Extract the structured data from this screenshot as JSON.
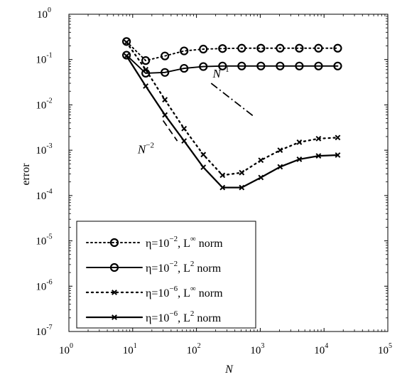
{
  "chart_data": {
    "type": "line",
    "xlabel": "N",
    "ylabel": "error",
    "xscale": "log",
    "yscale": "log",
    "xlim": [
      1,
      100000
    ],
    "ylim": [
      1e-07,
      1
    ],
    "grid": false,
    "legend_position": "bottom-left",
    "x_ticks": [
      {
        "base": "10",
        "exp": "0"
      },
      {
        "base": "10",
        "exp": "1"
      },
      {
        "base": "10",
        "exp": "2"
      },
      {
        "base": "10",
        "exp": "3"
      },
      {
        "base": "10",
        "exp": "4"
      },
      {
        "base": "10",
        "exp": "5"
      }
    ],
    "y_ticks": [
      {
        "base": "10",
        "exp": "-7"
      },
      {
        "base": "10",
        "exp": "-6"
      },
      {
        "base": "10",
        "exp": "-5"
      },
      {
        "base": "10",
        "exp": "-4"
      },
      {
        "base": "10",
        "exp": "-3"
      },
      {
        "base": "10",
        "exp": "-2"
      },
      {
        "base": "10",
        "exp": "-1"
      },
      {
        "base": "10",
        "exp": "0"
      }
    ],
    "x": [
      8,
      16,
      32,
      64,
      128,
      256,
      512,
      1024,
      2048,
      4096,
      8192,
      16384
    ],
    "series": [
      {
        "legend_pre": "η=10",
        "legend_exp": "−2",
        "legend_mid": ", L",
        "legend_norm_exp": "∞",
        "legend_post": " norm",
        "line": "dotted",
        "marker": "circle",
        "weight": "normal",
        "values": [
          0.25,
          0.095,
          0.12,
          0.155,
          0.17,
          0.175,
          0.178,
          0.178,
          0.178,
          0.178,
          0.178,
          0.178
        ]
      },
      {
        "legend_pre": "η=10",
        "legend_exp": "−2",
        "legend_mid": ", L",
        "legend_norm_exp": "2",
        "legend_post": " norm",
        "line": "solid",
        "marker": "circle",
        "weight": "normal",
        "values": [
          0.125,
          0.05,
          0.052,
          0.064,
          0.07,
          0.072,
          0.072,
          0.072,
          0.072,
          0.072,
          0.072,
          0.072
        ]
      },
      {
        "legend_pre": "η=10",
        "legend_exp": "−6",
        "legend_mid": ", L",
        "legend_norm_exp": "∞",
        "legend_post": " norm",
        "line": "dotted",
        "marker": "x",
        "weight": "bold",
        "values": [
          0.24,
          0.06,
          0.013,
          0.003,
          0.0008,
          0.00028,
          0.00032,
          0.0006,
          0.001,
          0.0015,
          0.0018,
          0.0019
        ]
      },
      {
        "legend_pre": "η=10",
        "legend_exp": "−6",
        "legend_mid": ", L",
        "legend_norm_exp": "2",
        "legend_post": " norm",
        "line": "solid",
        "marker": "x",
        "weight": "bold",
        "values": [
          0.12,
          0.026,
          0.006,
          0.0016,
          0.00042,
          0.00015,
          0.00015,
          0.00025,
          0.00043,
          0.00063,
          0.00075,
          0.00078
        ]
      }
    ],
    "reference_lines": [
      {
        "label_base": "N",
        "label_exp": "−1",
        "line": "dashdot",
        "x": [
          170,
          800
        ],
        "y": [
          0.03,
          0.0055
        ],
        "label_x": 180,
        "label_y": 0.04
      },
      {
        "label_base": "N",
        "label_exp": "−2",
        "line": "dashed",
        "x": [
          30,
          50
        ],
        "y": [
          0.0045,
          0.0016
        ],
        "label_x": 12,
        "label_y": 0.00085
      }
    ]
  }
}
